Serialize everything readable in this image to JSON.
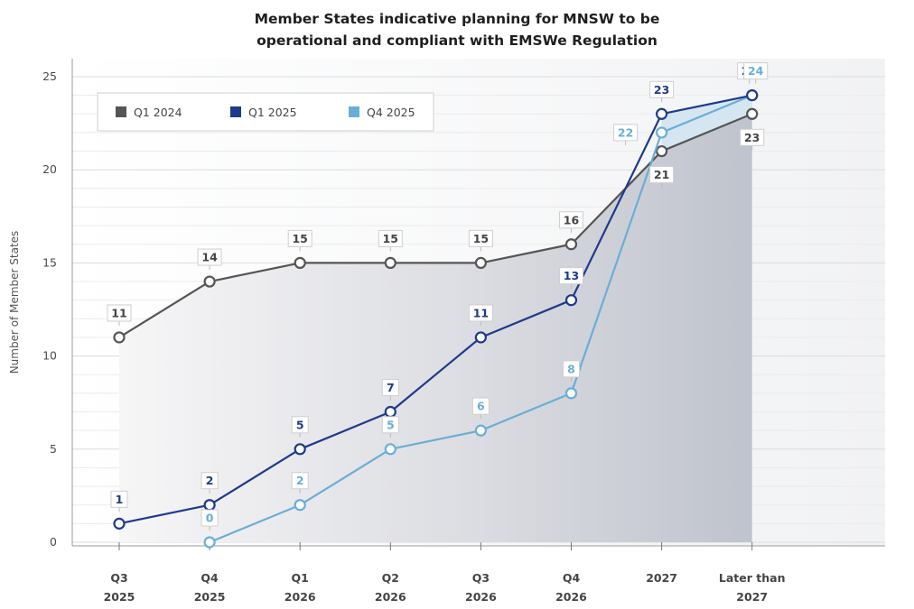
{
  "chart_data": {
    "type": "line",
    "title_line1": "Member States indicative planning for MNSW to be",
    "title_line2": "operational and compliant with EMSWe Regulation",
    "ylabel": "Number of Member States",
    "ylim": [
      0,
      25
    ],
    "yticks": [
      "0",
      "5",
      "10",
      "15",
      "20",
      "25"
    ],
    "categories": [
      [
        "Q3",
        "2025"
      ],
      [
        "Q4",
        "2025"
      ],
      [
        "Q1",
        "2026"
      ],
      [
        "Q2",
        "2026"
      ],
      [
        "Q3",
        "2026"
      ],
      [
        "Q4",
        "2026"
      ],
      [
        "2027",
        ""
      ],
      [
        "Later than",
        "2027"
      ]
    ],
    "grid": true,
    "legend_position": "top-left",
    "series": [
      {
        "name": "Q1 2024",
        "color": "#555555",
        "values": [
          11,
          14,
          15,
          15,
          15,
          16,
          21,
          23
        ]
      },
      {
        "name": "Q1 2025",
        "color": "#1e3a8a",
        "values": [
          1,
          2,
          5,
          7,
          11,
          13,
          23,
          24
        ]
      },
      {
        "name": "Q4 2025",
        "color": "#6aaed6",
        "values": [
          null,
          0,
          2,
          5,
          6,
          8,
          22,
          24
        ]
      }
    ]
  }
}
